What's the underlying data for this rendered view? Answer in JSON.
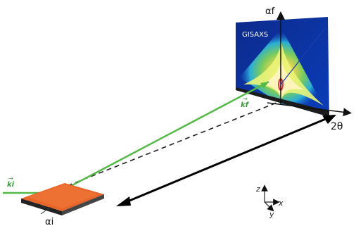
{
  "detector": {
    "title": "GISAXS"
  },
  "labels": {
    "alpha_f": "αf",
    "two_theta": "2θ",
    "alpha_i": "αi",
    "k_i": "ki",
    "k_f": "kf"
  },
  "axes": {
    "z": "z",
    "x": "x",
    "y": "y"
  },
  "colors": {
    "beam": "#55b947",
    "sample": "#e8652a",
    "arrow": "#000000",
    "detector_bg": "#0a2f9a"
  }
}
